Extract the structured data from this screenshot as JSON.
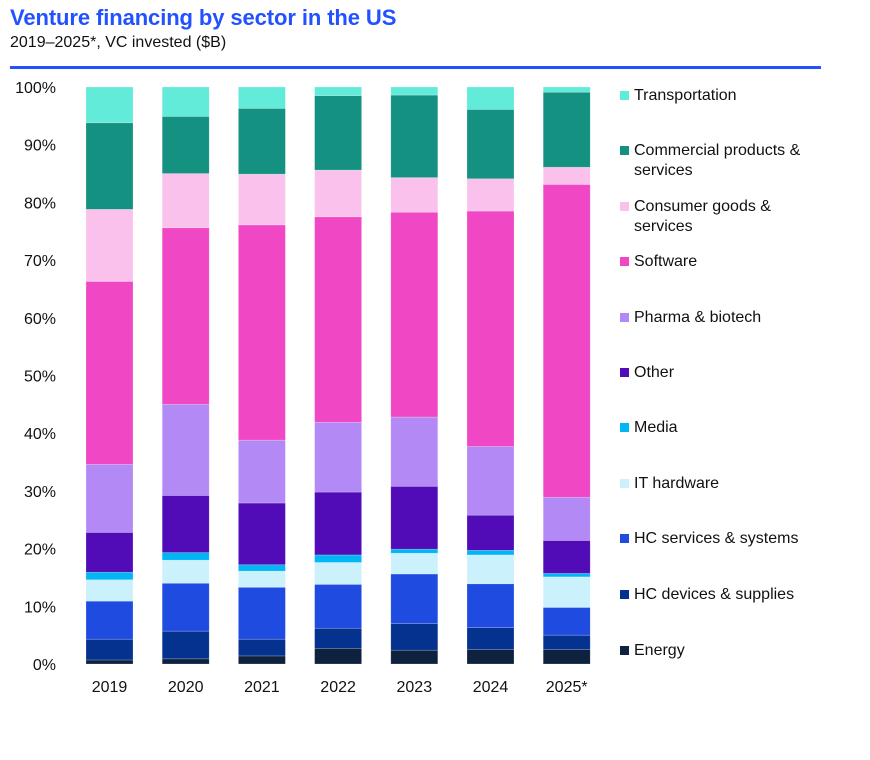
{
  "header": {
    "title": "Venture financing by sector in the US",
    "subtitle": "2019–2025*, VC invested ($B)"
  },
  "chart_data": {
    "type": "bar",
    "stacked": true,
    "normalized": true,
    "title": "Venture financing by sector in the US",
    "subtitle": "2019–2025*, VC invested ($B)",
    "xlabel": "",
    "ylabel": "",
    "ylim": [
      0,
      100
    ],
    "yticks": [
      "0%",
      "10%",
      "20%",
      "30%",
      "40%",
      "50%",
      "60%",
      "70%",
      "80%",
      "90%",
      "100%"
    ],
    "grid": false,
    "legend_position": "right",
    "categories": [
      "2019",
      "2020",
      "2021",
      "2022",
      "2023",
      "2024",
      "2025*"
    ],
    "series": [
      {
        "name": "Energy",
        "color": "#0e2240",
        "values": [
          0.7,
          0.9,
          1.4,
          2.7,
          2.4,
          2.5,
          2.5
        ]
      },
      {
        "name": "HC devices & supplies",
        "color": "#05318f",
        "values": [
          3.6,
          4.8,
          2.9,
          3.5,
          4.6,
          3.8,
          2.5
        ]
      },
      {
        "name": "HC services & systems",
        "color": "#1f4be0",
        "values": [
          6.6,
          8.3,
          9.0,
          7.6,
          8.6,
          7.6,
          4.8
        ]
      },
      {
        "name": "IT hardware",
        "color": "#cbf1fd",
        "values": [
          3.7,
          4.0,
          2.8,
          3.8,
          3.6,
          5.0,
          5.3
        ]
      },
      {
        "name": "Media",
        "color": "#00b6f5",
        "values": [
          1.3,
          1.3,
          1.1,
          1.3,
          0.7,
          0.8,
          0.6
        ]
      },
      {
        "name": "Other",
        "color": "#510cb8",
        "values": [
          6.9,
          9.9,
          10.7,
          10.9,
          10.9,
          6.1,
          5.7
        ]
      },
      {
        "name": "Pharma & biotech",
        "color": "#b38af5",
        "values": [
          11.8,
          15.8,
          10.9,
          12.1,
          12.0,
          11.9,
          7.5
        ]
      },
      {
        "name": "Software",
        "color": "#f047c4",
        "values": [
          31.7,
          30.6,
          37.3,
          35.6,
          35.5,
          40.8,
          54.2
        ]
      },
      {
        "name": "Consumer goods & services",
        "color": "#f9c1eb",
        "values": [
          12.5,
          9.4,
          8.8,
          8.1,
          6.0,
          5.6,
          3.0
        ]
      },
      {
        "name": "Commercial products & services",
        "color": "#149180",
        "values": [
          15.0,
          9.9,
          11.4,
          12.9,
          14.3,
          12.0,
          13.0
        ]
      },
      {
        "name": "Transportation",
        "color": "#62ebd9",
        "values": [
          6.2,
          5.1,
          3.7,
          1.5,
          1.4,
          3.9,
          0.9
        ]
      }
    ]
  },
  "legend": {
    "items": [
      {
        "label": "Transportation",
        "color": "#62ebd9"
      },
      {
        "label": "Commercial products & services",
        "color": "#149180"
      },
      {
        "label": "Consumer goods & services",
        "color": "#f9c1eb"
      },
      {
        "label": "Software",
        "color": "#f047c4"
      },
      {
        "label": "Pharma & biotech",
        "color": "#b38af5"
      },
      {
        "label": "Other",
        "color": "#510cb8"
      },
      {
        "label": "Media",
        "color": "#00b6f5"
      },
      {
        "label": "IT hardware",
        "color": "#cbf1fd"
      },
      {
        "label": "HC services & systems",
        "color": "#1f4be0"
      },
      {
        "label": "HC devices & supplies",
        "color": "#05318f"
      },
      {
        "label": "Energy",
        "color": "#0e2240"
      }
    ]
  }
}
